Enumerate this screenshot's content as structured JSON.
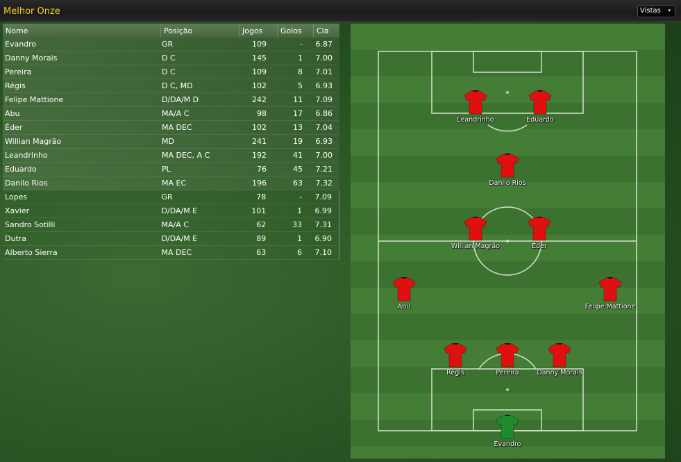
{
  "window": {
    "title": "Melhor Onze",
    "view_button": "Vistas",
    "view_arrow": "▾"
  },
  "table": {
    "headers": {
      "name": "Nome",
      "position": "Posição",
      "games": "Jogos",
      "goals": "Golos",
      "rating": "Cla"
    },
    "rows": [
      {
        "name": "Evandro",
        "position": "GR",
        "games": "109",
        "goals": "-",
        "rating": "6.87",
        "starter": true
      },
      {
        "name": "Danny Morais",
        "position": "D C",
        "games": "145",
        "goals": "1",
        "rating": "7.00",
        "starter": true
      },
      {
        "name": "Pereira",
        "position": "D C",
        "games": "109",
        "goals": "8",
        "rating": "7.01",
        "starter": true
      },
      {
        "name": "Régis",
        "position": "D C, MD",
        "games": "102",
        "goals": "5",
        "rating": "6.93",
        "starter": true
      },
      {
        "name": "Felipe Mattione",
        "position": "D/DA/M D",
        "games": "242",
        "goals": "11",
        "rating": "7.09",
        "starter": true
      },
      {
        "name": "Abu",
        "position": "MA/A C",
        "games": "98",
        "goals": "17",
        "rating": "6.86",
        "starter": true
      },
      {
        "name": "Éder",
        "position": "MA DEC",
        "games": "102",
        "goals": "13",
        "rating": "7.04",
        "starter": true
      },
      {
        "name": "Willian Magrão",
        "position": "MD",
        "games": "241",
        "goals": "19",
        "rating": "6.93",
        "starter": true
      },
      {
        "name": "Leandrinho",
        "position": "MA DEC, A C",
        "games": "192",
        "goals": "41",
        "rating": "7.00",
        "starter": true
      },
      {
        "name": "Eduardo",
        "position": "PL",
        "games": "76",
        "goals": "45",
        "rating": "7.21",
        "starter": true
      },
      {
        "name": "Danilo Rios",
        "position": "MA EC",
        "games": "196",
        "goals": "63",
        "rating": "7.32",
        "starter": true
      },
      {
        "name": "Lopes",
        "position": "GR",
        "games": "78",
        "goals": "-",
        "rating": "7.09",
        "starter": false
      },
      {
        "name": "Xavier",
        "position": "D/DA/M E",
        "games": "101",
        "goals": "1",
        "rating": "6.99",
        "starter": false
      },
      {
        "name": "Sandro Sotilli",
        "position": "MA/A C",
        "games": "62",
        "goals": "33",
        "rating": "7.31",
        "starter": false
      },
      {
        "name": "Dutra",
        "position": "D/DA/M E",
        "games": "89",
        "goals": "1",
        "rating": "6.90",
        "starter": false
      },
      {
        "name": "Alberto Sierra",
        "position": "MA DEC",
        "games": "63",
        "goals": "6",
        "rating": "7.10",
        "starter": false
      }
    ]
  },
  "pitch": {
    "colors": {
      "outfield_shirt": "#e01010",
      "goalkeeper_shirt": "#1e8c2c",
      "title": "#f2d21a"
    },
    "players": [
      {
        "name": "Leandrinho",
        "role": "outfield",
        "slot": "fwd-left"
      },
      {
        "name": "Eduardo",
        "role": "outfield",
        "slot": "fwd-right"
      },
      {
        "name": "Danilo Rios",
        "role": "outfield",
        "slot": "am-centre"
      },
      {
        "name": "Willian Magrão",
        "role": "outfield",
        "slot": "cm-left"
      },
      {
        "name": "Éder",
        "role": "outfield",
        "slot": "cm-right"
      },
      {
        "name": "Abu",
        "role": "outfield",
        "slot": "wide-left"
      },
      {
        "name": "Felipe Mattione",
        "role": "outfield",
        "slot": "wide-right"
      },
      {
        "name": "Régis",
        "role": "outfield",
        "slot": "cb-left"
      },
      {
        "name": "Pereira",
        "role": "outfield",
        "slot": "cb-centre"
      },
      {
        "name": "Danny Morais",
        "role": "outfield",
        "slot": "cb-right"
      },
      {
        "name": "Evandro",
        "role": "goalkeeper",
        "slot": "gk"
      }
    ]
  }
}
